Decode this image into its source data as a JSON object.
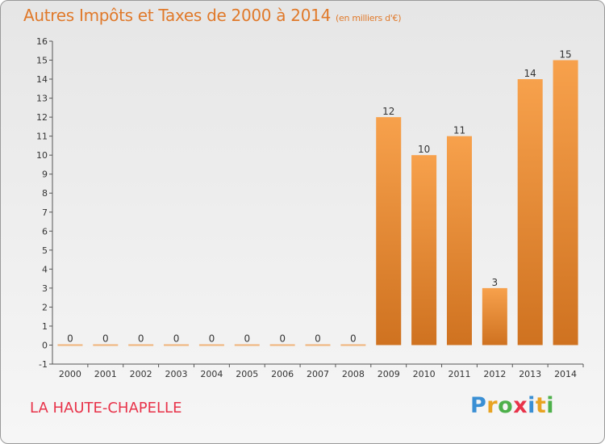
{
  "header": {
    "title": "Autres Impôts et Taxes de 2000 à 2014",
    "unit": "(en milliers d'€)"
  },
  "footer": {
    "commune": "LA HAUTE-CHAPELLE",
    "logo_letters": [
      "P",
      "r",
      "o",
      "x",
      "i",
      "t",
      "i"
    ],
    "logo_colors": [
      "#3a8fd4",
      "#e8a322",
      "#4db04a",
      "#e8334a",
      "#3a8fd4",
      "#e8a322",
      "#4db04a"
    ]
  },
  "colors": {
    "bar_light": "#f7a14c",
    "bar_dark": "#cf7220",
    "zero_bar": "#f0b47a",
    "title": "#e0792a",
    "commune": "#e8334a"
  },
  "chart_data": {
    "type": "bar",
    "title": "Autres Impôts et Taxes de 2000 à 2014",
    "subtitle": "(en milliers d'€)",
    "categories": [
      "2000",
      "2001",
      "2002",
      "2003",
      "2004",
      "2005",
      "2006",
      "2007",
      "2008",
      "2009",
      "2010",
      "2011",
      "2012",
      "2013",
      "2014"
    ],
    "values": [
      0,
      0,
      0,
      0,
      0,
      0,
      0,
      0,
      0,
      12,
      10,
      11,
      3,
      14,
      15
    ],
    "yticks": [
      -1,
      0,
      1,
      2,
      3,
      4,
      5,
      6,
      7,
      8,
      9,
      10,
      11,
      12,
      13,
      14,
      15,
      16
    ],
    "ylim": [
      -1,
      16
    ],
    "grid": false,
    "legend": "none"
  }
}
